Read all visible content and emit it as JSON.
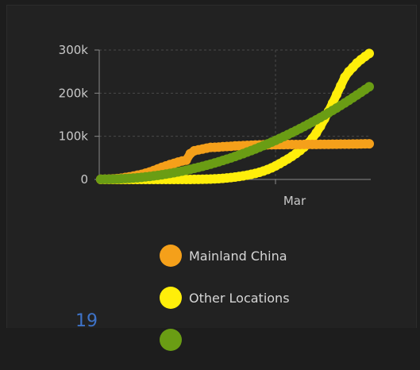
{
  "chart_data": {
    "type": "line",
    "title": "",
    "xlabel": "",
    "ylabel": "",
    "x_tick_labels": [
      "Mar"
    ],
    "y_tick_labels": [
      "0",
      "100k",
      "200k",
      "300k"
    ],
    "ylim": [
      0,
      300000
    ],
    "grid": true,
    "legend_position": "bottom",
    "x": [
      "d1",
      "d2",
      "d3",
      "d4",
      "d5",
      "d6",
      "d7",
      "d8",
      "d9",
      "d10",
      "d11",
      "d12",
      "d13",
      "d14",
      "d15",
      "d16",
      "d17",
      "d18",
      "d19",
      "d20",
      "d21",
      "d22",
      "d23",
      "d24",
      "d25",
      "d26",
      "d27",
      "d28",
      "d29",
      "d30",
      "d31",
      "d32",
      "d33",
      "d34",
      "d35",
      "d36",
      "d37",
      "d38",
      "d39",
      "d40",
      "d41",
      "d42",
      "d43",
      "d44",
      "d45",
      "d46",
      "d47",
      "d48",
      "d49",
      "d50",
      "d51",
      "d52",
      "d53",
      "d54",
      "d55",
      "d56",
      "d57",
      "d58",
      "d59",
      "d60",
      "d61",
      "d62",
      "d63",
      "d64",
      "d65",
      "d66",
      "d67"
    ],
    "series": [
      {
        "name": "Mainland China",
        "color": "#f5a01a",
        "values": [
          550,
          650,
          1000,
          1400,
          2100,
          3000,
          4500,
          6000,
          7800,
          9800,
          11800,
          14500,
          17300,
          20600,
          24500,
          28000,
          31200,
          34500,
          37200,
          40200,
          42700,
          44700,
          59800,
          66500,
          68500,
          70500,
          72400,
          74200,
          74600,
          75100,
          75900,
          76300,
          76900,
          77700,
          78100,
          78500,
          78800,
          79300,
          79800,
          80000,
          80200,
          80300,
          80400,
          80600,
          80700,
          80800,
          80900,
          80900,
          81000,
          81000,
          81100,
          81100,
          81200,
          81300,
          81400,
          81400,
          81500,
          81600,
          81700,
          81800,
          81900,
          82000,
          82100,
          82200,
          82300,
          82500,
          82600
        ]
      },
      {
        "name": "Other Locations",
        "color": "#ffee0a",
        "values": [
          0,
          0,
          0,
          0,
          0,
          0,
          0,
          0,
          0,
          0,
          0,
          0,
          0,
          0,
          0,
          0,
          0,
          0,
          0,
          0,
          0,
          0,
          100,
          200,
          300,
          500,
          700,
          1000,
          1400,
          1900,
          2600,
          3400,
          4300,
          5500,
          6800,
          8300,
          10000,
          12000,
          14000,
          16500,
          19500,
          23000,
          27000,
          31500,
          36500,
          42000,
          47500,
          53500,
          60000,
          67000,
          75000,
          84000,
          95000,
          108000,
          123000,
          140000,
          158000,
          177000,
          197000,
          217000,
          237000,
          250000,
          260000,
          270000,
          278000,
          285000,
          292000
        ]
      },
      {
        "name": "",
        "color": "#6a9d14",
        "values": [
          550,
          600,
          700,
          900,
          1200,
          1600,
          2000,
          2600,
          3200,
          4000,
          4900,
          5900,
          7000,
          8200,
          9500,
          10900,
          12400,
          14000,
          15700,
          17500,
          19400,
          21400,
          23500,
          25700,
          28000,
          30400,
          32900,
          35500,
          38200,
          41000,
          43900,
          46900,
          50000,
          53200,
          56500,
          59900,
          63400,
          67000,
          70700,
          74500,
          78400,
          82400,
          86500,
          90700,
          95000,
          99400,
          103900,
          108500,
          113200,
          118000,
          122900,
          127900,
          133000,
          138200,
          143500,
          148900,
          154400,
          160000,
          165700,
          171500,
          177400,
          183400,
          189500,
          195700,
          202000,
          208400,
          214900
        ]
      }
    ],
    "legend": [
      "Mainland China",
      "Other Locations"
    ]
  },
  "page_fragments": {
    "corner_number": "19"
  }
}
